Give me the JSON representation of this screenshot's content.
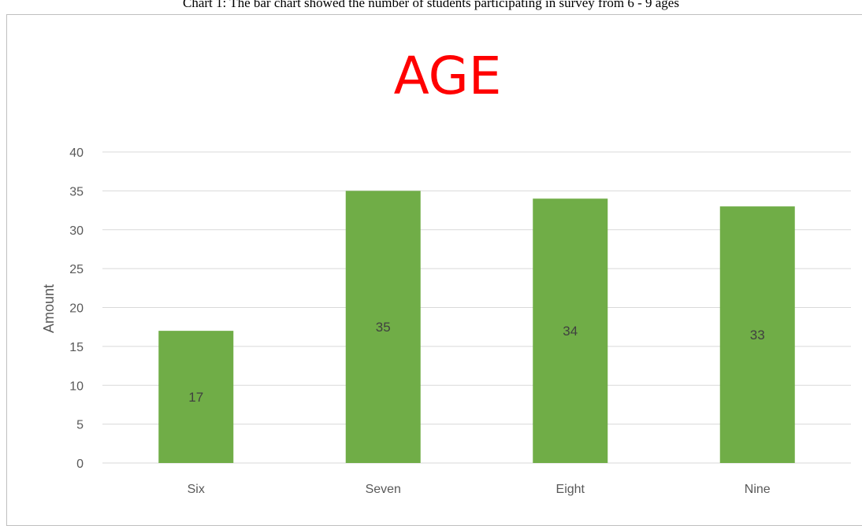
{
  "caption": "Chart 1: The bar chart showed the number of students participating in survey from 6 - 9 ages",
  "colors": {
    "bar": "#70ad47",
    "title": "#ff0000",
    "grid": "#d9d9d9"
  },
  "chart_data": {
    "type": "bar",
    "title": "AGE",
    "xlabel": "",
    "ylabel": "Amount",
    "categories": [
      "Six",
      "Seven",
      "Eight",
      "Nine"
    ],
    "values": [
      17,
      35,
      34,
      33
    ],
    "ylim": [
      0,
      40
    ],
    "yticks": [
      0,
      5,
      10,
      15,
      20,
      25,
      30,
      35,
      40
    ],
    "grid": true,
    "legend": "none"
  }
}
